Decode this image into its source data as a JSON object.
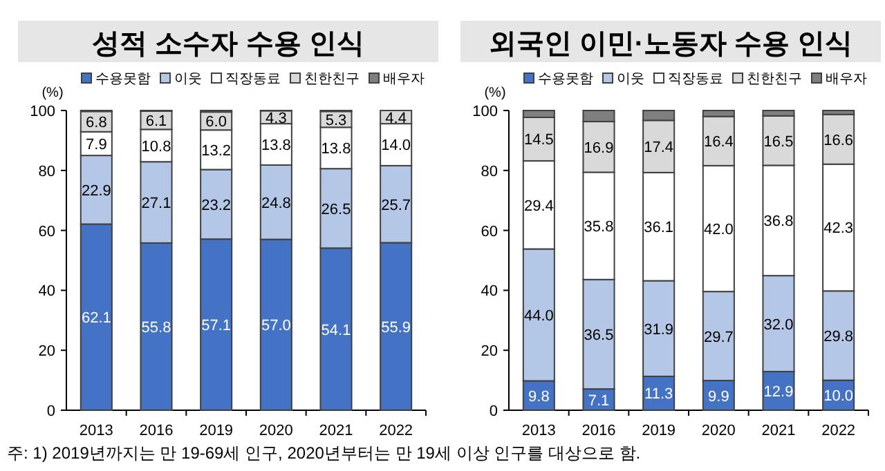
{
  "chart_data": [
    {
      "type": "bar",
      "title": "성적 소수자 수용 인식",
      "ylabel": "(%)",
      "stacked": true,
      "legend": "top",
      "categories": [
        "2013",
        "2016",
        "2019",
        "2020",
        "2021",
        "2022"
      ],
      "ylim": [
        0,
        100
      ],
      "yticks": [
        0,
        20,
        40,
        60,
        80,
        100
      ],
      "grid": false,
      "series": [
        {
          "name": "수용못함",
          "color": "#4472c4",
          "values": [
            62.1,
            55.8,
            57.1,
            57.0,
            54.1,
            55.9
          ],
          "value_labels": [
            "62.1",
            "55.8",
            "57.1",
            "57.0",
            "54.1",
            "55.9"
          ]
        },
        {
          "name": "이웃",
          "color": "#b4c7e7",
          "values": [
            22.9,
            27.1,
            23.2,
            24.8,
            26.5,
            25.7
          ],
          "value_labels": [
            "22.9",
            "27.1",
            "23.2",
            "24.8",
            "26.5",
            "25.7"
          ]
        },
        {
          "name": "직장동료",
          "color": "#ffffff",
          "values": [
            7.9,
            10.8,
            13.2,
            13.8,
            13.8,
            14.0
          ],
          "value_labels": [
            "7.9",
            "10.8",
            "13.2",
            "13.8",
            "13.8",
            "14.0"
          ]
        },
        {
          "name": "친한친구",
          "color": "#d9d9d9",
          "values": [
            6.8,
            6.1,
            6.0,
            4.3,
            5.3,
            4.4
          ],
          "value_labels": [
            "6.8",
            "6.1",
            "6.0",
            "4.3",
            "5.3",
            "4.4"
          ]
        },
        {
          "name": "배우자",
          "color": "#7f7f7f",
          "values": [
            0.3,
            0.2,
            0.5,
            0.1,
            0.3,
            0.0
          ],
          "value_labels": [
            null,
            null,
            null,
            null,
            null,
            null
          ]
        }
      ],
      "annotations": [
        "주: 1) 2019년까지는 만 19-69세 인구, 2020년부터는 만 19세 이상 인구를 대상으로 함."
      ]
    },
    {
      "type": "bar",
      "title": "외국인 이민·노동자 수용 인식",
      "ylabel": "(%)",
      "stacked": true,
      "legend": "top",
      "categories": [
        "2013",
        "2016",
        "2019",
        "2020",
        "2021",
        "2022"
      ],
      "ylim": [
        0,
        100
      ],
      "yticks": [
        0,
        20,
        40,
        60,
        80,
        100
      ],
      "grid": false,
      "series": [
        {
          "name": "수용못함",
          "color": "#4472c4",
          "values": [
            9.8,
            7.1,
            11.3,
            9.9,
            12.9,
            10.0
          ],
          "value_labels": [
            "9.8",
            "7.1",
            "11.3",
            "9.9",
            "12.9",
            "10.0"
          ]
        },
        {
          "name": "이웃",
          "color": "#b4c7e7",
          "values": [
            44.0,
            36.5,
            31.9,
            29.7,
            32.0,
            29.8
          ],
          "value_labels": [
            "44.0",
            "36.5",
            "31.9",
            "29.7",
            "32.0",
            "29.8"
          ]
        },
        {
          "name": "직장동료",
          "color": "#ffffff",
          "values": [
            29.4,
            35.8,
            36.1,
            42.0,
            36.8,
            42.3
          ],
          "value_labels": [
            "29.4",
            "35.8",
            "36.1",
            "42.0",
            "36.8",
            "42.3"
          ]
        },
        {
          "name": "친한친구",
          "color": "#d9d9d9",
          "values": [
            14.5,
            16.9,
            17.4,
            16.4,
            16.5,
            16.6
          ],
          "value_labels": [
            "14.5",
            "16.9",
            "17.4",
            "16.4",
            "16.5",
            "16.6"
          ]
        },
        {
          "name": "배우자",
          "color": "#7f7f7f",
          "values": [
            2.3,
            3.7,
            3.3,
            2.0,
            1.8,
            1.3
          ],
          "value_labels": [
            null,
            null,
            null,
            null,
            null,
            null
          ]
        }
      ]
    }
  ]
}
